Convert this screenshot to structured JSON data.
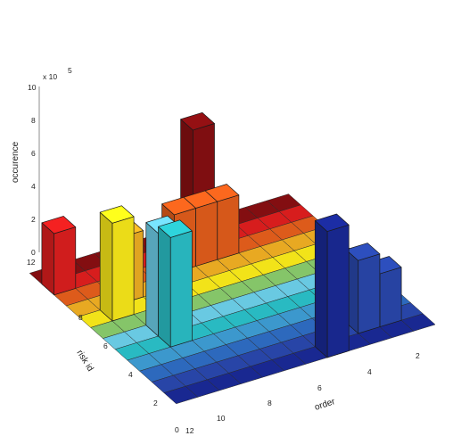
{
  "chart_data": {
    "type": "bar3d",
    "title": "",
    "xlabel": "order",
    "ylabel": "risk id",
    "zlabel": "occurence",
    "z_scale_label": "x 10",
    "z_scale_exponent": "5",
    "x_ticks": [
      "2",
      "4",
      "6",
      "8",
      "10",
      "12"
    ],
    "y_ticks": [
      "0",
      "2",
      "4",
      "6",
      "8",
      "10",
      "12"
    ],
    "z_ticks": [
      "0",
      "2",
      "4",
      "6",
      "8",
      "10"
    ],
    "xlim": [
      1,
      12
    ],
    "ylim": [
      1,
      12
    ],
    "zlim": [
      0,
      10
    ],
    "colormap": "jet",
    "row_colors": [
      "#1a2a99",
      "#2a49b0",
      "#2f6ec7",
      "#3fa0d8",
      "#2bc4cc",
      "#6fd4ee",
      "#8ccf6e",
      "#ffef1a",
      "#f4b224",
      "#e9601c",
      "#e21f1f",
      "#8a0f12"
    ],
    "columns": [
      {
        "row": 1,
        "order": 5,
        "value": 7.6
      },
      {
        "row": 2,
        "order": 3,
        "value": 4.4
      },
      {
        "row": 2,
        "order": 2,
        "value": 3.2
      },
      {
        "row": 5,
        "order": 10,
        "value": 6.6
      },
      {
        "row": 6,
        "order": 10,
        "value": 6.2
      },
      {
        "row": 8,
        "order": 11,
        "value": 5.9
      },
      {
        "row": 9,
        "order": 10,
        "value": 4.0
      },
      {
        "row": 10,
        "order": 7,
        "value": 3.5
      },
      {
        "row": 10,
        "order": 6,
        "value": 3.5
      },
      {
        "row": 10,
        "order": 5,
        "value": 3.5
      },
      {
        "row": 11,
        "order": 12,
        "value": 3.7
      },
      {
        "row": 12,
        "order": 5,
        "value": 6.5
      }
    ]
  }
}
